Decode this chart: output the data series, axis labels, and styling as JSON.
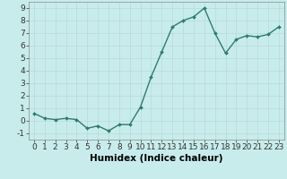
{
  "xlabel": "Humidex (Indice chaleur)",
  "x": [
    0,
    1,
    2,
    3,
    4,
    5,
    6,
    7,
    8,
    9,
    10,
    11,
    12,
    13,
    14,
    15,
    16,
    17,
    18,
    19,
    20,
    21,
    22,
    23
  ],
  "y": [
    0.6,
    0.2,
    0.1,
    0.2,
    0.1,
    -0.6,
    -0.4,
    -0.8,
    -0.3,
    -0.3,
    1.1,
    3.5,
    5.5,
    7.5,
    8.0,
    8.3,
    9.0,
    7.0,
    5.4,
    6.5,
    6.8,
    6.7,
    6.9,
    7.5
  ],
  "line_color": "#2e7d6e",
  "marker": "D",
  "marker_size": 2.0,
  "line_width": 1.0,
  "bg_color": "#c8ecec",
  "grid_color": "#b8d8d8",
  "tick_label_fontsize": 6.5,
  "xlabel_fontsize": 7.5,
  "ylim": [
    -1.5,
    9.5
  ],
  "yticks": [
    -1,
    0,
    1,
    2,
    3,
    4,
    5,
    6,
    7,
    8,
    9
  ],
  "xticks": [
    0,
    1,
    2,
    3,
    4,
    5,
    6,
    7,
    8,
    9,
    10,
    11,
    12,
    13,
    14,
    15,
    16,
    17,
    18,
    19,
    20,
    21,
    22,
    23
  ]
}
